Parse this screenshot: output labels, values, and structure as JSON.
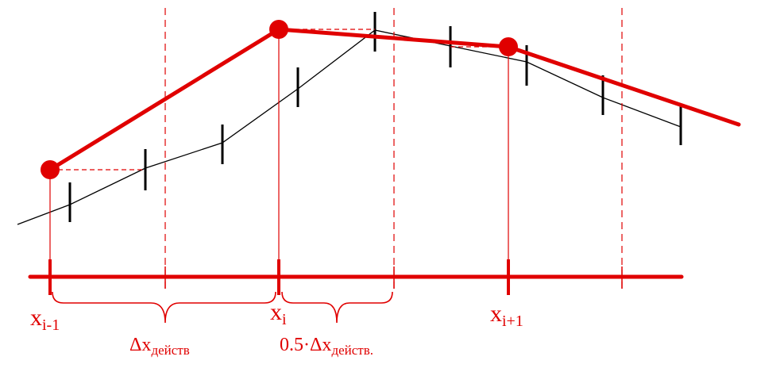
{
  "colors": {
    "accent": "#e00000",
    "ink": "#000000",
    "background": "#ffffff"
  },
  "labels": {
    "x_prev": {
      "base": "x",
      "sub": "i-1"
    },
    "x_curr": {
      "base": "x",
      "sub": "i"
    },
    "x_next": {
      "base": "x",
      "sub": "i+1"
    },
    "dx": {
      "base": "Δx",
      "sub": "действ"
    },
    "half_dx": {
      "base": "0.5·Δx",
      "sub": "действ."
    }
  }
}
